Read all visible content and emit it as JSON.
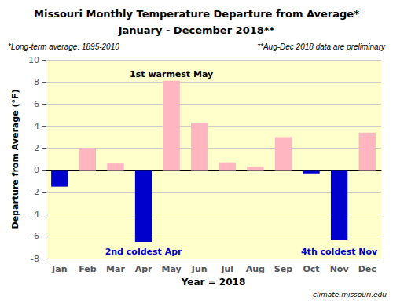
{
  "chart_data": {
    "type": "bar",
    "title": "Missouri Monthly Temperature Departure from Average*",
    "subtitle": "January - December 2018**",
    "notes": [
      "*Long-term average: 1895-2010",
      "**Aug-Dec 2018 data are preliminary"
    ],
    "source": "climate.missouri.edu",
    "xlabel": "Year = 2018",
    "ylabel": "Departure from Average (°F)",
    "categories": [
      "Jan",
      "Feb",
      "Mar",
      "Apr",
      "May",
      "Jun",
      "Jul",
      "Aug",
      "Sep",
      "Oct",
      "Nov",
      "Dec"
    ],
    "values": [
      -1.5,
      2.0,
      0.6,
      -6.5,
      8.1,
      4.3,
      0.7,
      0.3,
      3.0,
      -0.3,
      -6.3,
      3.4
    ],
    "colors": [
      "#0000CD",
      "#FFB6C1",
      "#FFB6C1",
      "#0000CD",
      "#FFB6C1",
      "#FFB6C1",
      "#FFB6C1",
      "#FFB6C1",
      "#FFB6C1",
      "#0000CD",
      "#0000CD",
      "#FFB6C1"
    ],
    "ylim": [
      -8.0,
      10.0
    ],
    "yticks": [
      -8.0,
      -6.0,
      -4.0,
      -2.0,
      0.0,
      2.0,
      4.0,
      6.0,
      8.0,
      10.0
    ],
    "grid": true,
    "annotations": [
      {
        "text": "1st warmest May",
        "category": "May"
      },
      {
        "text": "2nd coldest Apr",
        "category": "Apr",
        "color": "#0000CD"
      },
      {
        "text": "4th coldest Nov",
        "category": "Nov",
        "color": "#0000CD"
      }
    ]
  }
}
